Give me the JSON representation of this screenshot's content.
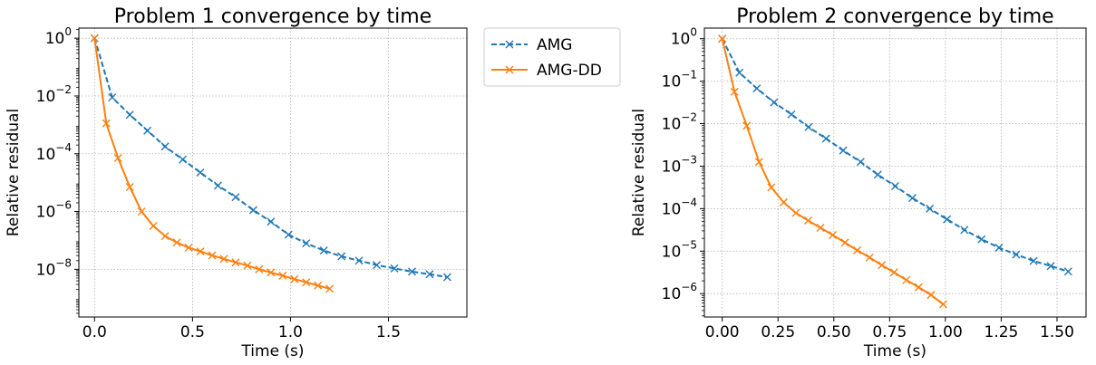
{
  "figure": {
    "legend": {
      "placement": "outside-right-of-left-plot",
      "entries": [
        "AMG",
        "AMG-DD"
      ]
    },
    "colors": {
      "AMG": "#1f77b4",
      "AMG-DD": "#ff7f0e",
      "grid": "#b0b0b0"
    }
  },
  "chart_data": [
    {
      "type": "line",
      "title": "Problem 1 convergence by time",
      "xlabel": "Time (s)",
      "ylabel": "Relative residual",
      "yscale": "log",
      "xlim": [
        -0.08,
        1.9
      ],
      "ylim_log10": [
        -9.65,
        0.35
      ],
      "grid": true,
      "x_ticks": [
        0.0,
        0.5,
        1.0,
        1.5
      ],
      "x_tick_labels": [
        "0.0",
        "0.5",
        "1.0",
        "1.5"
      ],
      "y_ticks_log10": [
        0,
        -2,
        -4,
        -6,
        -8
      ],
      "y_tick_labels": [
        [
          "10",
          "0"
        ],
        [
          "10",
          "−2"
        ],
        [
          "10",
          "−4"
        ],
        [
          "10",
          "−6"
        ],
        [
          "10",
          "−8"
        ]
      ],
      "series": [
        {
          "name": "AMG",
          "style": "dashed",
          "marker": "x",
          "x": [
            0.0,
            0.09,
            0.18,
            0.27,
            0.36,
            0.45,
            0.54,
            0.63,
            0.72,
            0.81,
            0.9,
            0.99,
            1.08,
            1.17,
            1.26,
            1.35,
            1.44,
            1.53,
            1.62,
            1.71,
            1.8
          ],
          "log10_y": [
            0,
            -2.05,
            -2.65,
            -3.2,
            -3.75,
            -4.2,
            -4.65,
            -5.1,
            -5.5,
            -5.95,
            -6.35,
            -6.8,
            -7.1,
            -7.35,
            -7.55,
            -7.7,
            -7.85,
            -7.97,
            -8.08,
            -8.17,
            -8.27
          ]
        },
        {
          "name": "AMG-DD",
          "style": "solid",
          "marker": "x",
          "x": [
            0.0,
            0.06,
            0.12,
            0.18,
            0.24,
            0.3,
            0.36,
            0.42,
            0.48,
            0.54,
            0.6,
            0.66,
            0.72,
            0.78,
            0.84,
            0.9,
            0.96,
            1.02,
            1.08,
            1.14,
            1.2
          ],
          "log10_y": [
            0,
            -2.95,
            -4.15,
            -5.15,
            -6.0,
            -6.5,
            -6.85,
            -7.07,
            -7.25,
            -7.38,
            -7.52,
            -7.64,
            -7.76,
            -7.87,
            -8.0,
            -8.11,
            -8.22,
            -8.34,
            -8.45,
            -8.56,
            -8.67
          ]
        }
      ]
    },
    {
      "type": "line",
      "title": "Problem 2 convergence by time",
      "xlabel": "Time (s)",
      "ylabel": "Relative residual",
      "yscale": "log",
      "xlim": [
        -0.08,
        1.63
      ],
      "ylim_log10": [
        -6.55,
        0.25
      ],
      "grid": true,
      "x_ticks": [
        0.0,
        0.25,
        0.5,
        0.75,
        1.0,
        1.25,
        1.5
      ],
      "x_tick_labels": [
        "0.00",
        "0.25",
        "0.50",
        "0.75",
        "1.00",
        "1.25",
        "1.50"
      ],
      "y_ticks_log10": [
        0,
        -1,
        -2,
        -3,
        -4,
        -5,
        -6
      ],
      "y_tick_labels": [
        [
          "10",
          "0"
        ],
        [
          "10",
          "−1"
        ],
        [
          "10",
          "−2"
        ],
        [
          "10",
          "−3"
        ],
        [
          "10",
          "−4"
        ],
        [
          "10",
          "−5"
        ],
        [
          "10",
          "−6"
        ]
      ],
      "series": [
        {
          "name": "AMG",
          "style": "dashed",
          "marker": "x",
          "x": [
            0.0,
            0.077,
            0.155,
            0.232,
            0.31,
            0.387,
            0.465,
            0.542,
            0.62,
            0.697,
            0.775,
            0.852,
            0.93,
            1.007,
            1.085,
            1.162,
            1.24,
            1.317,
            1.395,
            1.472,
            1.55
          ],
          "log10_y": [
            0,
            -0.8,
            -1.17,
            -1.5,
            -1.78,
            -2.08,
            -2.35,
            -2.63,
            -2.9,
            -3.2,
            -3.47,
            -3.75,
            -4.0,
            -4.25,
            -4.5,
            -4.72,
            -4.92,
            -5.08,
            -5.23,
            -5.35,
            -5.48
          ]
        },
        {
          "name": "AMG-DD",
          "style": "solid",
          "marker": "x",
          "x": [
            0.0,
            0.055,
            0.11,
            0.165,
            0.22,
            0.275,
            0.33,
            0.385,
            0.44,
            0.495,
            0.55,
            0.605,
            0.66,
            0.715,
            0.77,
            0.825,
            0.88,
            0.935,
            0.99
          ],
          "log10_y": [
            0,
            -1.25,
            -2.05,
            -2.9,
            -3.5,
            -3.85,
            -4.1,
            -4.28,
            -4.45,
            -4.62,
            -4.8,
            -4.98,
            -5.15,
            -5.33,
            -5.5,
            -5.68,
            -5.85,
            -6.03,
            -6.25
          ]
        }
      ]
    }
  ]
}
